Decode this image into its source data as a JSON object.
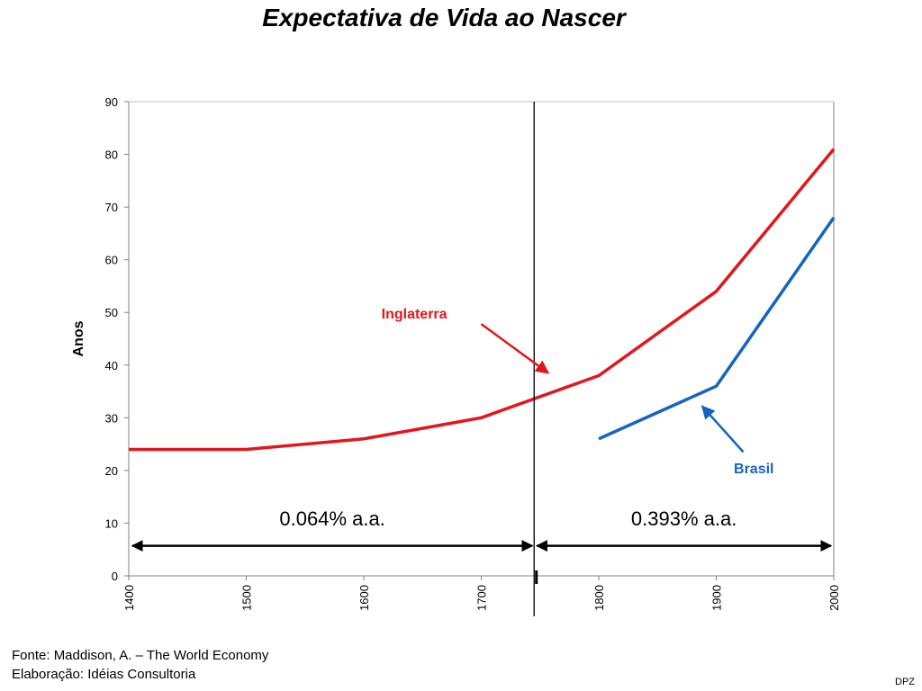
{
  "chart_data": {
    "type": "line",
    "title": "Expectativa de Vida ao Nascer",
    "ylabel": "Anos",
    "xlabel": "",
    "xlim": [
      1400,
      2000
    ],
    "ylim": [
      0,
      90
    ],
    "x_ticks": [
      1400,
      1500,
      1600,
      1700,
      1800,
      1900,
      2000
    ],
    "y_ticks": [
      0,
      10,
      20,
      30,
      40,
      50,
      60,
      70,
      80,
      90
    ],
    "grid": false,
    "colors": {
      "inglaterra": "#e2161c",
      "brasil": "#1565c0",
      "axes": "#000000"
    },
    "series": [
      {
        "name": "Inglaterra",
        "x": [
          1400,
          1500,
          1600,
          1700,
          1800,
          1900,
          2000
        ],
        "y": [
          24,
          24,
          26,
          30,
          38,
          54,
          81
        ]
      },
      {
        "name": "Brasil",
        "x": [
          1800,
          1900,
          2000
        ],
        "y": [
          26,
          36,
          68
        ]
      }
    ],
    "divider_year": 1745,
    "growth_rates": [
      {
        "label": "0.064% a.a.",
        "from": 1400,
        "to": 1745
      },
      {
        "label": "0.393% a.a.",
        "from": 1745,
        "to": 2000
      }
    ]
  },
  "footer": {
    "source": "Fonte: Maddison, A. – The World Economy",
    "elaboration": "Elaboração: Idéias Consultoria",
    "credit": "DPZ"
  }
}
